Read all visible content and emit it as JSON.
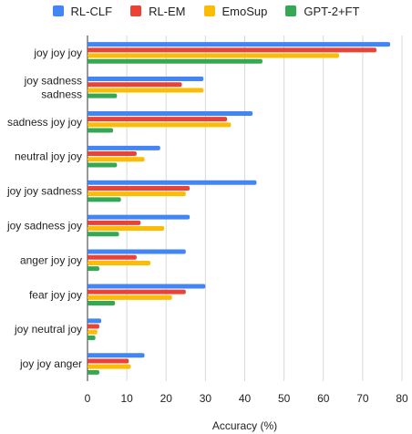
{
  "chart_data": {
    "type": "bar",
    "orientation": "horizontal",
    "categories": [
      [
        "joy joy joy"
      ],
      [
        "joy sadness",
        "sadness"
      ],
      [
        "sadness joy joy"
      ],
      [
        "neutral joy joy"
      ],
      [
        "joy joy sadness"
      ],
      [
        "joy sadness joy"
      ],
      [
        "anger joy joy"
      ],
      [
        "fear joy joy"
      ],
      [
        "joy neutral joy"
      ],
      [
        "joy joy anger"
      ]
    ],
    "series": [
      {
        "name": "RL-CLF",
        "color": "#4285f4",
        "values": [
          77,
          29.5,
          42,
          18.5,
          43,
          26,
          25,
          30,
          3.5,
          14.5
        ]
      },
      {
        "name": "RL-EM",
        "color": "#ea4335",
        "values": [
          73.5,
          24,
          35.5,
          12.5,
          26,
          13.5,
          12.5,
          25,
          3,
          10.5
        ]
      },
      {
        "name": "EmoSup",
        "color": "#fbbc04",
        "values": [
          64,
          29.5,
          36.5,
          14.5,
          25,
          19.5,
          16,
          21.5,
          2.5,
          11
        ]
      },
      {
        "name": "GPT-2+FT",
        "color": "#34a853",
        "values": [
          44.5,
          7.5,
          6.5,
          7.5,
          8.5,
          8,
          3,
          7,
          2,
          3
        ]
      }
    ],
    "xlabel": "Accuracy (%)",
    "xlim": [
      0,
      80
    ],
    "xticks": [
      "0",
      "10",
      "20",
      "30",
      "40",
      "50",
      "60",
      "70",
      "80"
    ],
    "grid": true,
    "legend_position": "top"
  }
}
